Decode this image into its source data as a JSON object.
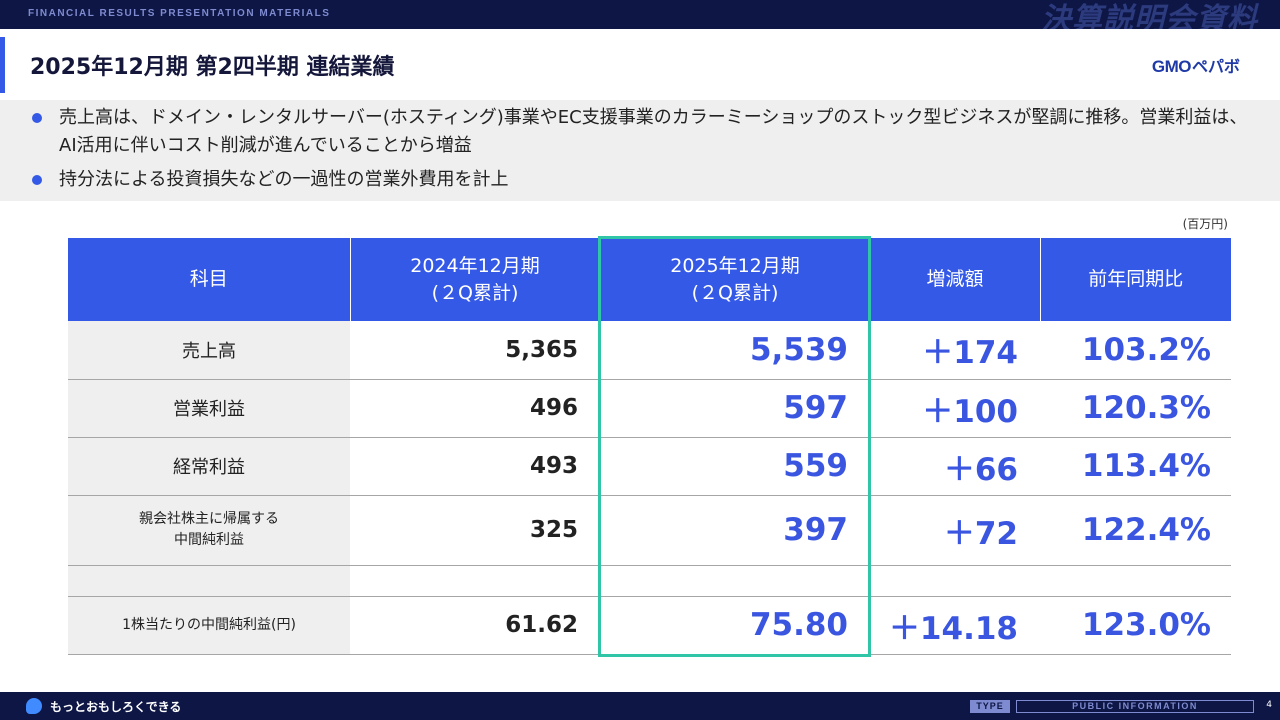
{
  "header": {
    "section_label": "FINANCIAL RESULTS PRESENTATION MATERIALS",
    "watermark": "決算説明会資料"
  },
  "title": "2025年12月期 第2四半期 連結業績",
  "logo": {
    "gmo": "GMO",
    "kana": "ペパボ"
  },
  "summary": {
    "bullets": [
      "売上高は、ドメイン・レンタルサーバー(ホスティング)事業やEC支援事業のカラーミーショップのストック型ビジネスが堅調に推移。営業利益は、AI活用に伴いコスト削減が進んでいることから増益",
      "持分法による投資損失などの一過性の営業外費用を計上"
    ],
    "bullet_color": "#3459e6"
  },
  "unit": "(百万円)",
  "table": {
    "headers": {
      "item": "科目",
      "prev_line1": "2024年12月期",
      "prev_line2": "(２Q累計)",
      "curr_line1": "2025年12月期",
      "curr_line2": "(２Q累計)",
      "diff": "増減額",
      "ratio": "前年同期比"
    },
    "rows": [
      {
        "label": "売上高",
        "label2": "",
        "prev": "5,365",
        "curr": "5,539",
        "diff": "＋174",
        "ratio": "103.2%"
      },
      {
        "label": "営業利益",
        "label2": "",
        "prev": "496",
        "curr": "597",
        "diff": "＋100",
        "ratio": "120.3%"
      },
      {
        "label": "経常利益",
        "label2": "",
        "prev": "493",
        "curr": "559",
        "diff": "＋66",
        "ratio": "113.4%"
      },
      {
        "label": "親会社株主に帰属する",
        "label2": "中間純利益",
        "prev": "325",
        "curr": "397",
        "diff": "＋72",
        "ratio": "122.4%"
      },
      {
        "label": "1株当たりの中間純利益(円)",
        "label2": "",
        "prev": "61.62",
        "curr": "75.80",
        "diff": "＋14.18",
        "ratio": "123.0%"
      }
    ],
    "header_color": "#3459e6",
    "value_color": "#3a56e0",
    "highlight_color": "#2fc5a6"
  },
  "footer": {
    "slogan": "もっとおもしろくできる",
    "type_label": "TYPE",
    "info_label": "PUBLIC INFORMATION",
    "page_number": "4"
  }
}
